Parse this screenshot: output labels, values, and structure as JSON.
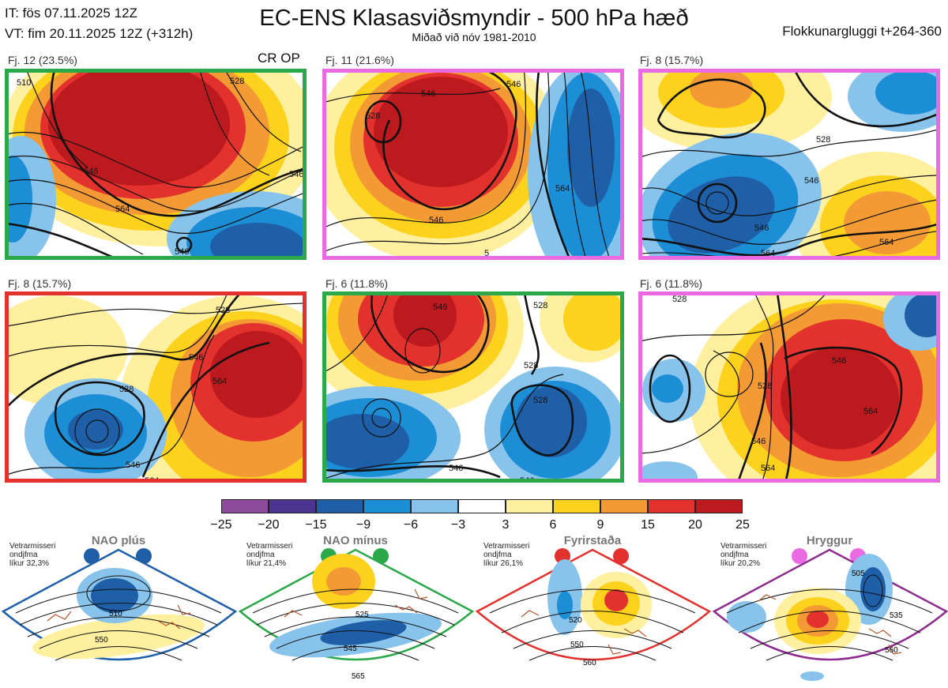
{
  "header": {
    "it_line": "IT: fös 07.11.2025 12Z",
    "vt_line": "VT: fim 20.11.2025 12Z  (+312h)",
    "title": "EC-ENS Klasasviðsmyndir - 500 hPa hæð",
    "subtitle": "Miðað við nóv 1981-2010",
    "window": "Flokkunargluggi t+264-360",
    "cr_op": "CR OP"
  },
  "panels": [
    {
      "label": "Fj. 12 (23.5%)",
      "color": "#2aa84a"
    },
    {
      "label": "Fj. 11 (21.6%)",
      "color": "#e96ae3"
    },
    {
      "label": "Fj. 8 (15.7%)",
      "color": "#e96ae3"
    },
    {
      "label": "Fj. 8 (15.7%)",
      "color": "#e3312d"
    },
    {
      "label": "Fj. 6 (11.8%)",
      "color": "#2aa84a"
    },
    {
      "label": "Fj. 6 (11.8%)",
      "color": "#e96ae3"
    }
  ],
  "contour_labels": {
    "p1": [
      "510",
      "528",
      "546",
      "546",
      "564",
      "546"
    ],
    "p2": [
      "528",
      "546",
      "546",
      "546",
      "564",
      "5"
    ],
    "p3": [
      "528",
      "546",
      "546",
      "564",
      "564"
    ],
    "p4": [
      "528",
      "528",
      "546",
      "564",
      "546",
      "564"
    ],
    "p5": [
      "546",
      "528",
      "528",
      "528",
      "546",
      "546"
    ],
    "p6": [
      "528",
      "546",
      "528",
      "564",
      "546",
      "564"
    ]
  },
  "chart_data": {
    "type": "heatmap",
    "title": "EC-ENS Klasasviðsmyndir - 500 hPa hæð",
    "colorbar": {
      "ticks": [
        "−25",
        "−20",
        "−15",
        "−9",
        "−6",
        "−3",
        "3",
        "6",
        "9",
        "15",
        "20",
        "25"
      ],
      "colors": [
        "#8e4b9c",
        "#4c3591",
        "#1e5fa8",
        "#1c8ed6",
        "#88c3ec",
        "#ffffff",
        "#fff0a0",
        "#fdd21c",
        "#f39a34",
        "#e3312d",
        "#bd1a1f"
      ]
    },
    "clusters": [
      {
        "name": "Fj. 12",
        "probability_pct": 23.5
      },
      {
        "name": "Fj. 11",
        "probability_pct": 21.6
      },
      {
        "name": "Fj. 8",
        "probability_pct": 15.7
      },
      {
        "name": "Fj. 8",
        "probability_pct": 15.7
      },
      {
        "name": "Fj. 6",
        "probability_pct": 11.8
      },
      {
        "name": "Fj. 6",
        "probability_pct": 11.8
      }
    ],
    "regimes": [
      {
        "name": "NAO plús",
        "likelihood_pct": 32.3,
        "color": "#1e5fa8",
        "contours": [
          "510",
          "550"
        ]
      },
      {
        "name": "NAO mínus",
        "likelihood_pct": 21.4,
        "color": "#2aa84a",
        "contours": [
          "525",
          "545",
          "565"
        ]
      },
      {
        "name": "Fyrirstaða",
        "likelihood_pct": 26.1,
        "color": "#e3312d",
        "contours": [
          "520",
          "550",
          "560"
        ]
      },
      {
        "name": "Hryggur",
        "likelihood_pct": 20.2,
        "color": "#e96ae3",
        "contours": [
          "505",
          "535",
          "560"
        ]
      }
    ]
  },
  "regime_notes": [
    {
      "l1": "Vetrarmisseri",
      "l2": "ondjfma",
      "l3": "líkur 32,3%"
    },
    {
      "l1": "Vetrarmisseri",
      "l2": "ondjfma",
      "l3": "líkur 21,4%"
    },
    {
      "l1": "Vetrarmisseri",
      "l2": "ondjfma",
      "l3": "líkur 26,1%"
    },
    {
      "l1": "Vetrarmisseri",
      "l2": "ondjfma",
      "l3": "líkur 20,2%"
    }
  ]
}
